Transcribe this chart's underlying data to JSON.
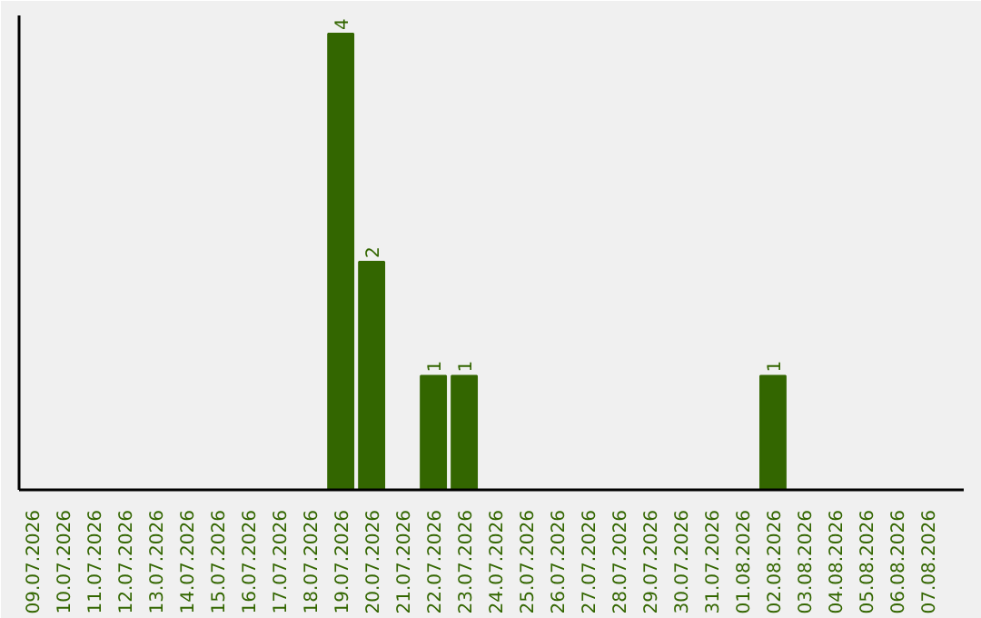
{
  "chart_data": {
    "type": "bar",
    "categories": [
      "09.07.2026",
      "10.07.2026",
      "11.07.2026",
      "12.07.2026",
      "13.07.2026",
      "14.07.2026",
      "15.07.2026",
      "16.07.2026",
      "17.07.2026",
      "18.07.2026",
      "19.07.2026",
      "20.07.2026",
      "21.07.2026",
      "22.07.2026",
      "23.07.2026",
      "24.07.2026",
      "25.07.2026",
      "26.07.2026",
      "27.07.2026",
      "28.07.2026",
      "29.07.2026",
      "30.07.2026",
      "31.07.2026",
      "01.08.2026",
      "02.08.2026",
      "03.08.2026",
      "04.08.2026",
      "05.08.2026",
      "06.08.2026",
      "07.08.2026"
    ],
    "values": [
      0,
      0,
      0,
      0,
      0,
      0,
      0,
      0,
      0,
      0,
      4,
      2,
      0,
      1,
      1,
      0,
      0,
      0,
      0,
      0,
      0,
      0,
      0,
      0,
      1,
      0,
      0,
      0,
      0,
      0
    ],
    "value_labels": [
      null,
      null,
      null,
      null,
      null,
      null,
      null,
      null,
      null,
      null,
      "4",
      "2",
      null,
      "1",
      "1",
      null,
      null,
      null,
      null,
      null,
      null,
      null,
      null,
      null,
      "1",
      null,
      null,
      null,
      null,
      null
    ],
    "color": "#336600",
    "tick_labels": "x",
    "grid": false
  }
}
